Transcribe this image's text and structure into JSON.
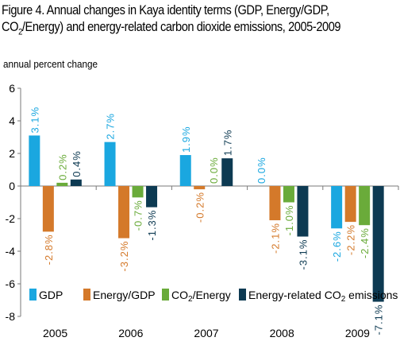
{
  "title": {
    "line1": "Figure 4. Annual changes in Kaya identity terms (GDP, Energy/GDP,",
    "line2_a": "CO",
    "line2_sub": "2",
    "line2_b": "/Energy)  and energy-related carbon dioxide emissions, 2005-2009"
  },
  "chart_data": {
    "type": "bar",
    "title": "Figure 4. Annual changes in Kaya identity terms (GDP, Energy/GDP, CO2/Energy) and energy-related carbon dioxide emissions, 2005-2009",
    "ylabel": "annual percent change",
    "xlabel": "",
    "categories": [
      "2005",
      "2006",
      "2007",
      "2008",
      "2009"
    ],
    "ylim": [
      -8,
      6
    ],
    "yticks": [
      6,
      4,
      2,
      0,
      -2,
      -4,
      -6,
      -8
    ],
    "grid": false,
    "legend_position": "bottom",
    "series": [
      {
        "name": "GDP",
        "color": "#1aa7e0",
        "values": [
          3.1,
          2.7,
          1.9,
          0.0,
          -2.6
        ],
        "labels": [
          "3.1%",
          "2.7%",
          "1.9%",
          "0.0%",
          "-2.6%"
        ]
      },
      {
        "name": "Energy/GDP",
        "color": "#d4792a",
        "values": [
          -2.8,
          -3.2,
          -0.2,
          -2.1,
          -2.2
        ],
        "labels": [
          "-2.8%",
          "-3.2%",
          "-0.2%",
          "-2.1%",
          "-2.2%"
        ]
      },
      {
        "name": "CO2/Energy",
        "legend_parts": [
          "CO",
          "2",
          "/Energy"
        ],
        "color": "#6aab3a",
        "values": [
          0.2,
          -0.7,
          0.0,
          -1.0,
          -2.4
        ],
        "labels": [
          "0.2%",
          "-0.7%",
          "0.0%",
          "-1.0%",
          "-2.4%"
        ]
      },
      {
        "name": "Energy-related CO2 emissions",
        "legend_parts": [
          "Energy-related CO",
          "2",
          " emissions"
        ],
        "color": "#0d3a52",
        "values": [
          0.4,
          -1.3,
          1.7,
          -3.1,
          -7.1
        ],
        "labels": [
          "0.4%",
          "-1.3%",
          "1.7%",
          "-3.1%",
          "-7.1%"
        ]
      }
    ]
  }
}
